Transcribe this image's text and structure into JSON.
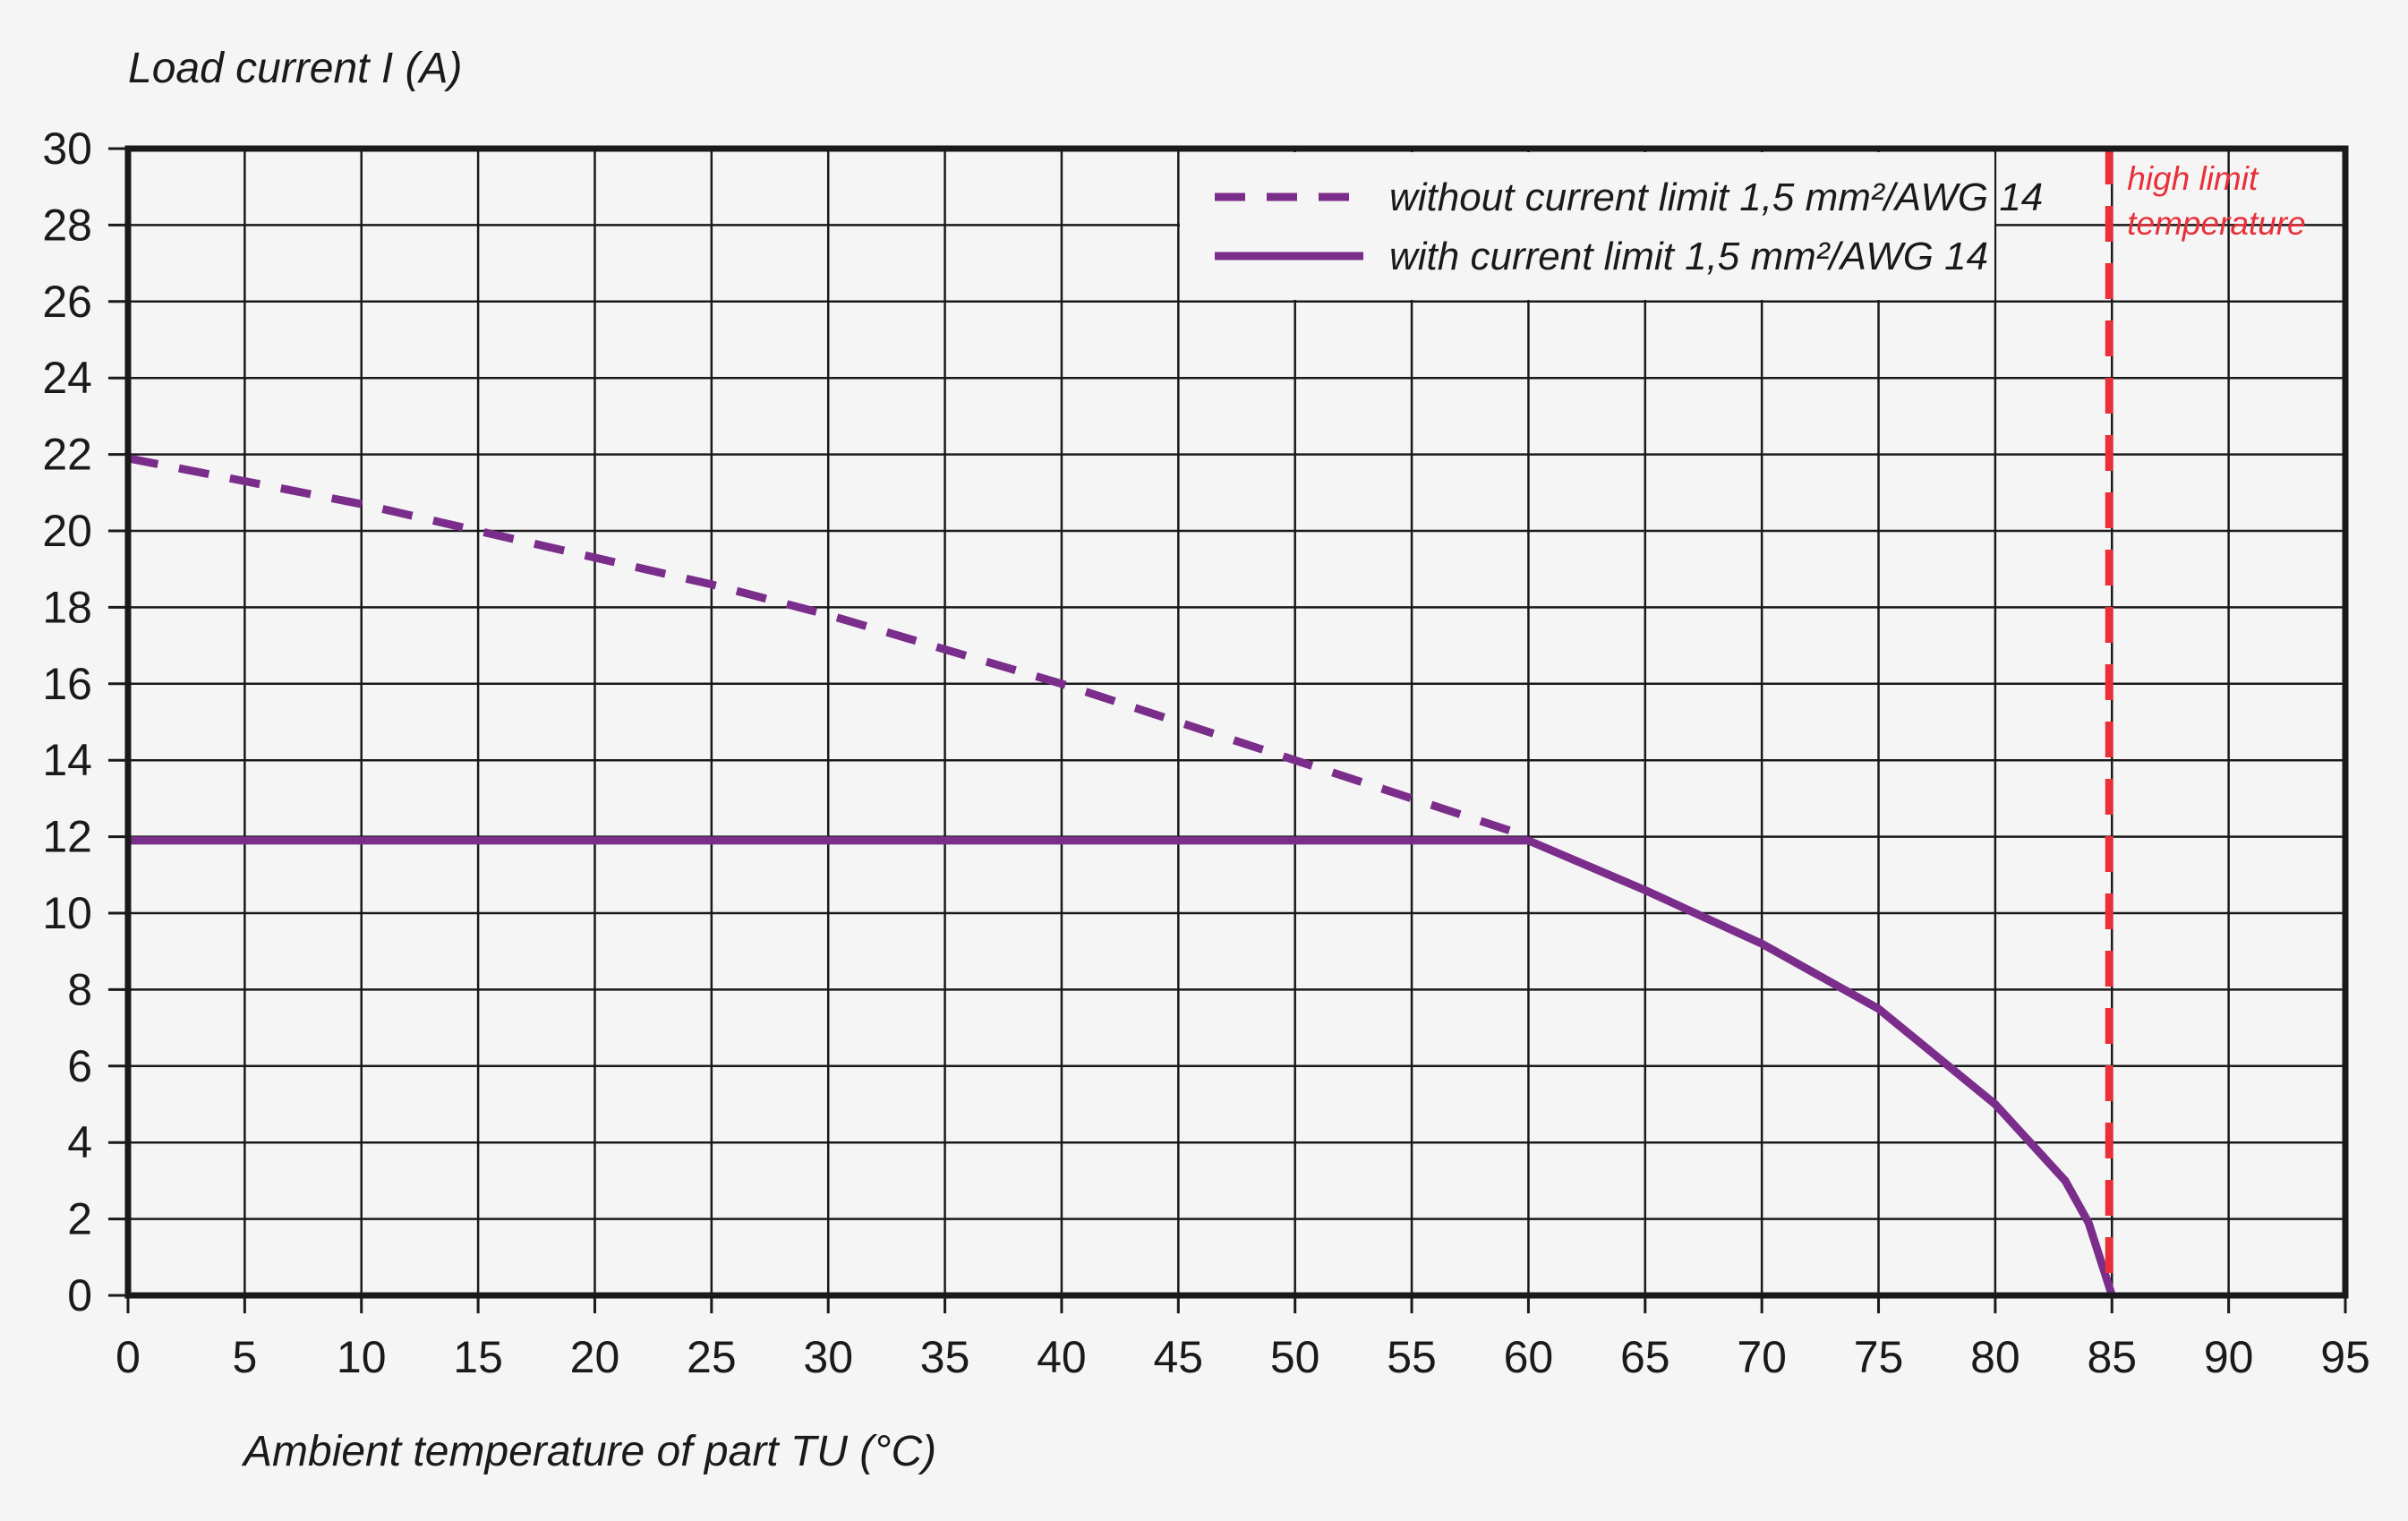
{
  "chart_data": {
    "type": "line",
    "ylabel": "Load current I (A)",
    "xlabel": "Ambient temperature of part TU (°C)",
    "xlim": [
      0,
      95
    ],
    "ylim": [
      0,
      30
    ],
    "xticks": [
      "0",
      "5",
      "10",
      "15",
      "20",
      "25",
      "30",
      "35",
      "40",
      "45",
      "50",
      "55",
      "60",
      "65",
      "70",
      "75",
      "80",
      "85",
      "90",
      "95"
    ],
    "yticks": [
      "0",
      "2",
      "4",
      "6",
      "8",
      "10",
      "12",
      "14",
      "16",
      "18",
      "20",
      "22",
      "24",
      "26",
      "28",
      "30"
    ],
    "grid": true,
    "legend_position": "top-right",
    "series": [
      {
        "name": "without current limit 1,5 mm²/AWG 14",
        "style": "dashed",
        "color": "#7b2d8b",
        "x": [
          0,
          5,
          10,
          15,
          20,
          25,
          30,
          35,
          40,
          45,
          50,
          55,
          60
        ],
        "y": [
          21.9,
          21.3,
          20.7,
          20.0,
          19.3,
          18.6,
          17.8,
          16.9,
          16.0,
          15.0,
          14.0,
          13.0,
          12.0
        ]
      },
      {
        "name": "with current limit 1,5 mm²/AWG 14",
        "style": "solid",
        "color": "#7b2d8b",
        "x": [
          0,
          5,
          10,
          15,
          20,
          25,
          30,
          35,
          40,
          45,
          50,
          55,
          60,
          65,
          70,
          75,
          80,
          83,
          84,
          85
        ],
        "y": [
          11.9,
          11.9,
          11.9,
          11.9,
          11.9,
          11.9,
          11.9,
          11.9,
          11.9,
          11.9,
          11.9,
          11.9,
          11.9,
          10.6,
          9.2,
          7.5,
          5.0,
          3.0,
          1.9,
          0
        ]
      }
    ],
    "annotations": [
      {
        "text_lines": [
          "high limit",
          "temperature"
        ],
        "x": 85,
        "color": "#e8303a",
        "style": "dashed vertical line"
      }
    ]
  }
}
